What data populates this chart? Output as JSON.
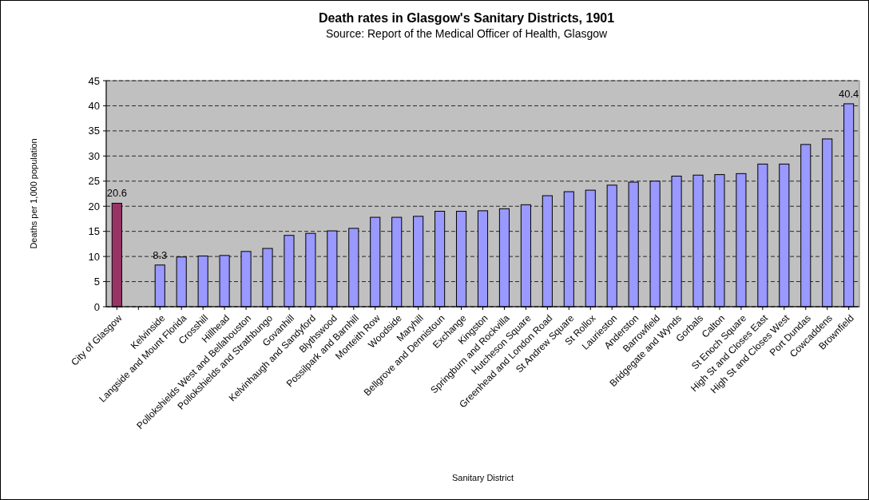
{
  "chart_data": {
    "type": "bar",
    "title": "Death rates in Glasgow's Sanitary Districts, 1901",
    "subtitle": "Source: Report of the Medical Officer of Health, Glasgow",
    "xlabel": "Sanitary District",
    "ylabel": "Deaths per 1,000 population",
    "categories": [
      "City of Glasgow",
      null,
      "Kelvinside",
      "Langside and Mount Florida",
      "Crosshill",
      "Hillhead",
      "Pollokshields West and Bellahouston",
      "Pollokshields and Strathbungo",
      "Govanhill",
      "Kelvinhaugh and Sandyford",
      "Blythswood",
      "Possilpark and Barnhill",
      "Monteith Row",
      "Woodside",
      "Maryhill",
      "Bellgrove and Dennistoun",
      "Exchange",
      "Kingston",
      "Springburn and Rockvilla",
      "Hutcheson Square",
      "Greenhead and London Road",
      "St Andrew Square",
      "St Rollox",
      "Laurieston",
      "Anderston",
      "Barrowfield",
      "Bridgegate and Wynds",
      "Gorbals",
      "Calton",
      "St Enoch Square",
      "High St and Closes East",
      "High St and Closes West",
      "Port Dundas",
      "Cowcaddens",
      "Brownfield"
    ],
    "values": [
      20.6,
      null,
      8.3,
      9.9,
      10.1,
      10.2,
      11.0,
      11.6,
      14.2,
      14.6,
      15.1,
      15.6,
      17.8,
      17.8,
      18.0,
      19.0,
      19.0,
      19.1,
      19.5,
      20.3,
      22.1,
      22.9,
      23.2,
      24.2,
      24.8,
      25.0,
      26.0,
      26.2,
      26.3,
      26.5,
      28.4,
      28.4,
      32.3,
      33.4,
      40.4
    ],
    "value_labels": [
      "20.6",
      null,
      "8.3",
      null,
      null,
      null,
      null,
      null,
      null,
      null,
      null,
      null,
      null,
      null,
      null,
      null,
      null,
      null,
      null,
      null,
      null,
      null,
      null,
      null,
      null,
      null,
      null,
      null,
      null,
      null,
      null,
      null,
      null,
      null,
      "40.4"
    ],
    "colors": [
      "#993366",
      null,
      "#9999ff",
      "#9999ff",
      "#9999ff",
      "#9999ff",
      "#9999ff",
      "#9999ff",
      "#9999ff",
      "#9999ff",
      "#9999ff",
      "#9999ff",
      "#9999ff",
      "#9999ff",
      "#9999ff",
      "#9999ff",
      "#9999ff",
      "#9999ff",
      "#9999ff",
      "#9999ff",
      "#9999ff",
      "#9999ff",
      "#9999ff",
      "#9999ff",
      "#9999ff",
      "#9999ff",
      "#9999ff",
      "#9999ff",
      "#9999ff",
      "#9999ff",
      "#9999ff",
      "#9999ff",
      "#9999ff",
      "#9999ff",
      "#9999ff"
    ],
    "ylim": [
      0,
      45
    ],
    "yticks": [
      0,
      5,
      10,
      15,
      20,
      25,
      30,
      35,
      40,
      45
    ],
    "grid": "y"
  }
}
